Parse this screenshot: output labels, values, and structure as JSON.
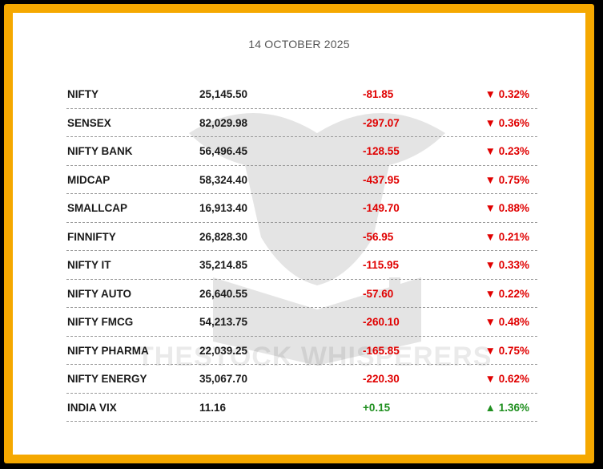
{
  "date": "14 OCTOBER 2025",
  "watermark_text": "THESTOCK WHISPERERS",
  "colors": {
    "border_outer": "#000000",
    "border_gold": "#f5a800",
    "negative": "#e00000",
    "positive": "#1f8f1f"
  },
  "rows": [
    {
      "name": "NIFTY",
      "value": "25,145.50",
      "change": "-81.85",
      "pct": "▼ 0.32%",
      "dir": "neg"
    },
    {
      "name": "SENSEX",
      "value": "82,029.98",
      "change": "-297.07",
      "pct": "▼ 0.36%",
      "dir": "neg"
    },
    {
      "name": "NIFTY BANK",
      "value": "56,496.45",
      "change": "-128.55",
      "pct": "▼ 0.23%",
      "dir": "neg"
    },
    {
      "name": "MIDCAP",
      "value": "58,324.40",
      "change": "-437.95",
      "pct": "▼ 0.75%",
      "dir": "neg"
    },
    {
      "name": "SMALLCAP",
      "value": "16,913.40",
      "change": "-149.70",
      "pct": "▼ 0.88%",
      "dir": "neg"
    },
    {
      "name": "FINNIFTY",
      "value": "26,828.30",
      "change": "-56.95",
      "pct": "▼ 0.21%",
      "dir": "neg"
    },
    {
      "name": "NIFTY IT",
      "value": "35,214.85",
      "change": "-115.95",
      "pct": "▼ 0.33%",
      "dir": "neg"
    },
    {
      "name": "NIFTY AUTO",
      "value": "26,640.55",
      "change": "-57.60",
      "pct": "▼ 0.22%",
      "dir": "neg"
    },
    {
      "name": "NIFTY FMCG",
      "value": "54,213.75",
      "change": "-260.10",
      "pct": "▼ 0.48%",
      "dir": "neg"
    },
    {
      "name": "NIFTY PHARMA",
      "value": "22,039.25",
      "change": "-165.85",
      "pct": "▼ 0.75%",
      "dir": "neg"
    },
    {
      "name": "NIFTY ENERGY",
      "value": "35,067.70",
      "change": "-220.30",
      "pct": "▼ 0.62%",
      "dir": "neg"
    },
    {
      "name": "INDIA VIX",
      "value": "11.16",
      "change": "+0.15",
      "pct": "▲ 1.36%",
      "dir": "pos"
    }
  ]
}
